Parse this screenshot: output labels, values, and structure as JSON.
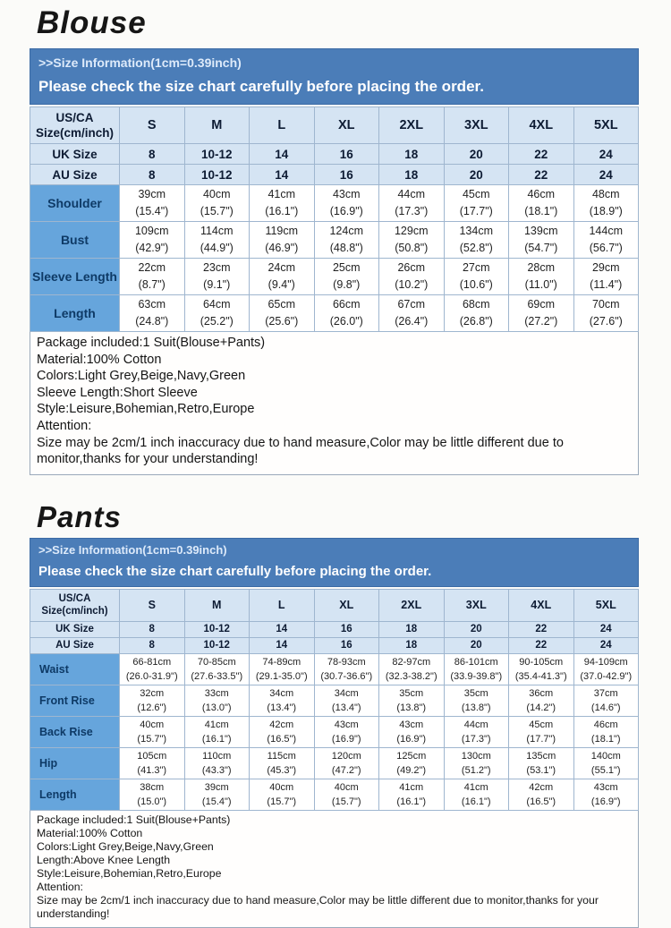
{
  "colors": {
    "banner_blue": "#4b7db8",
    "table_header_light_blue": "#d5e4f3",
    "row_label_blue": "#66a5dc",
    "grid_border": "#9fb6cf"
  },
  "blouse": {
    "title": "Blouse",
    "banner": {
      "line1": ">>Size Information(1cm=0.39inch)",
      "line2": "Please check the size chart carefully before placing the order."
    },
    "table": {
      "corner_line1": "US/CA",
      "corner_line2": "Size(cm/inch)",
      "sizes": [
        "S",
        "M",
        "L",
        "XL",
        "2XL",
        "3XL",
        "4XL",
        "5XL"
      ],
      "uk_label": "UK Size",
      "uk": [
        "8",
        "10-12",
        "14",
        "16",
        "18",
        "20",
        "22",
        "24"
      ],
      "au_label": "AU Size",
      "au": [
        "8",
        "10-12",
        "14",
        "16",
        "18",
        "20",
        "22",
        "24"
      ],
      "rows": [
        {
          "label": "Shoulder",
          "cells": [
            {
              "cm": "39cm",
              "in": "(15.4\")"
            },
            {
              "cm": "40cm",
              "in": "(15.7\")"
            },
            {
              "cm": "41cm",
              "in": "(16.1\")"
            },
            {
              "cm": "43cm",
              "in": "(16.9\")"
            },
            {
              "cm": "44cm",
              "in": "(17.3\")"
            },
            {
              "cm": "45cm",
              "in": "(17.7\")"
            },
            {
              "cm": "46cm",
              "in": "(18.1\")"
            },
            {
              "cm": "48cm",
              "in": "(18.9\")"
            }
          ]
        },
        {
          "label": "Bust",
          "cells": [
            {
              "cm": "109cm",
              "in": "(42.9\")"
            },
            {
              "cm": "114cm",
              "in": "(44.9\")"
            },
            {
              "cm": "119cm",
              "in": "(46.9\")"
            },
            {
              "cm": "124cm",
              "in": "(48.8\")"
            },
            {
              "cm": "129cm",
              "in": "(50.8\")"
            },
            {
              "cm": "134cm",
              "in": "(52.8\")"
            },
            {
              "cm": "139cm",
              "in": "(54.7\")"
            },
            {
              "cm": "144cm",
              "in": "(56.7\")"
            }
          ]
        },
        {
          "label": "Sleeve Length",
          "cells": [
            {
              "cm": "22cm",
              "in": "(8.7\")"
            },
            {
              "cm": "23cm",
              "in": "(9.1\")"
            },
            {
              "cm": "24cm",
              "in": "(9.4\")"
            },
            {
              "cm": "25cm",
              "in": "(9.8\")"
            },
            {
              "cm": "26cm",
              "in": "(10.2\")"
            },
            {
              "cm": "27cm",
              "in": "(10.6\")"
            },
            {
              "cm": "28cm",
              "in": "(11.0\")"
            },
            {
              "cm": "29cm",
              "in": "(11.4\")"
            }
          ]
        },
        {
          "label": "Length",
          "cells": [
            {
              "cm": "63cm",
              "in": "(24.8\")"
            },
            {
              "cm": "64cm",
              "in": "(25.2\")"
            },
            {
              "cm": "65cm",
              "in": "(25.6\")"
            },
            {
              "cm": "66cm",
              "in": "(26.0\")"
            },
            {
              "cm": "67cm",
              "in": "(26.4\")"
            },
            {
              "cm": "68cm",
              "in": "(26.8\")"
            },
            {
              "cm": "69cm",
              "in": "(27.2\")"
            },
            {
              "cm": "70cm",
              "in": "(27.6\")"
            }
          ]
        }
      ]
    },
    "notes": [
      "Package included:1 Suit(Blouse+Pants)",
      "Material:100% Cotton",
      "Colors:Light Grey,Beige,Navy,Green",
      "Sleeve Length:Short Sleeve",
      "Style:Leisure,Bohemian,Retro,Europe",
      "Attention:",
      "Size may be 2cm/1 inch inaccuracy due to hand measure,Color may be little different due to monitor,thanks for your understanding!"
    ]
  },
  "pants": {
    "title": "Pants",
    "banner": {
      "line1": ">>Size Information(1cm=0.39inch)",
      "line2": "Please check the size chart carefully before placing the order."
    },
    "table": {
      "corner_line1": "US/CA",
      "corner_line2": "Size(cm/inch)",
      "sizes": [
        "S",
        "M",
        "L",
        "XL",
        "2XL",
        "3XL",
        "4XL",
        "5XL"
      ],
      "uk_label": "UK Size",
      "uk": [
        "8",
        "10-12",
        "14",
        "16",
        "18",
        "20",
        "22",
        "24"
      ],
      "au_label": "AU Size",
      "au": [
        "8",
        "10-12",
        "14",
        "16",
        "18",
        "20",
        "22",
        "24"
      ],
      "rows": [
        {
          "label": "Waist",
          "cells": [
            {
              "cm": "66-81cm",
              "in": "(26.0-31.9\")"
            },
            {
              "cm": "70-85cm",
              "in": "(27.6-33.5\")"
            },
            {
              "cm": "74-89cm",
              "in": "(29.1-35.0\")"
            },
            {
              "cm": "78-93cm",
              "in": "(30.7-36.6\")"
            },
            {
              "cm": "82-97cm",
              "in": "(32.3-38.2\")"
            },
            {
              "cm": "86-101cm",
              "in": "(33.9-39.8\")"
            },
            {
              "cm": "90-105cm",
              "in": "(35.4-41.3\")"
            },
            {
              "cm": "94-109cm",
              "in": "(37.0-42.9\")"
            }
          ]
        },
        {
          "label": "Front Rise",
          "cells": [
            {
              "cm": "32cm",
              "in": "(12.6\")"
            },
            {
              "cm": "33cm",
              "in": "(13.0\")"
            },
            {
              "cm": "34cm",
              "in": "(13.4\")"
            },
            {
              "cm": "34cm",
              "in": "(13.4\")"
            },
            {
              "cm": "35cm",
              "in": "(13.8\")"
            },
            {
              "cm": "35cm",
              "in": "(13.8\")"
            },
            {
              "cm": "36cm",
              "in": "(14.2\")"
            },
            {
              "cm": "37cm",
              "in": "(14.6\")"
            }
          ]
        },
        {
          "label": "Back Rise",
          "cells": [
            {
              "cm": "40cm",
              "in": "(15.7\")"
            },
            {
              "cm": "41cm",
              "in": "(16.1\")"
            },
            {
              "cm": "42cm",
              "in": "(16.5\")"
            },
            {
              "cm": "43cm",
              "in": "(16.9\")"
            },
            {
              "cm": "43cm",
              "in": "(16.9\")"
            },
            {
              "cm": "44cm",
              "in": "(17.3\")"
            },
            {
              "cm": "45cm",
              "in": "(17.7\")"
            },
            {
              "cm": "46cm",
              "in": "(18.1\")"
            }
          ]
        },
        {
          "label": "Hip",
          "cells": [
            {
              "cm": "105cm",
              "in": "(41.3\")"
            },
            {
              "cm": "110cm",
              "in": "(43.3\")"
            },
            {
              "cm": "115cm",
              "in": "(45.3\")"
            },
            {
              "cm": "120cm",
              "in": "(47.2\")"
            },
            {
              "cm": "125cm",
              "in": "(49.2\")"
            },
            {
              "cm": "130cm",
              "in": "(51.2\")"
            },
            {
              "cm": "135cm",
              "in": "(53.1\")"
            },
            {
              "cm": "140cm",
              "in": "(55.1\")"
            }
          ]
        },
        {
          "label": "Length",
          "cells": [
            {
              "cm": "38cm",
              "in": "(15.0\")"
            },
            {
              "cm": "39cm",
              "in": "(15.4\")"
            },
            {
              "cm": "40cm",
              "in": "(15.7\")"
            },
            {
              "cm": "40cm",
              "in": "(15.7\")"
            },
            {
              "cm": "41cm",
              "in": "(16.1\")"
            },
            {
              "cm": "41cm",
              "in": "(16.1\")"
            },
            {
              "cm": "42cm",
              "in": "(16.5\")"
            },
            {
              "cm": "43cm",
              "in": "(16.9\")"
            }
          ]
        }
      ]
    },
    "notes": [
      "Package included:1 Suit(Blouse+Pants)",
      "Material:100% Cotton",
      "Colors:Light Grey,Beige,Navy,Green",
      "Length:Above Knee Length",
      "Style:Leisure,Bohemian,Retro,Europe",
      "Attention:",
      "Size may be 2cm/1 inch inaccuracy due to hand measure,Color may be little different due to monitor,thanks for your understanding!"
    ]
  }
}
